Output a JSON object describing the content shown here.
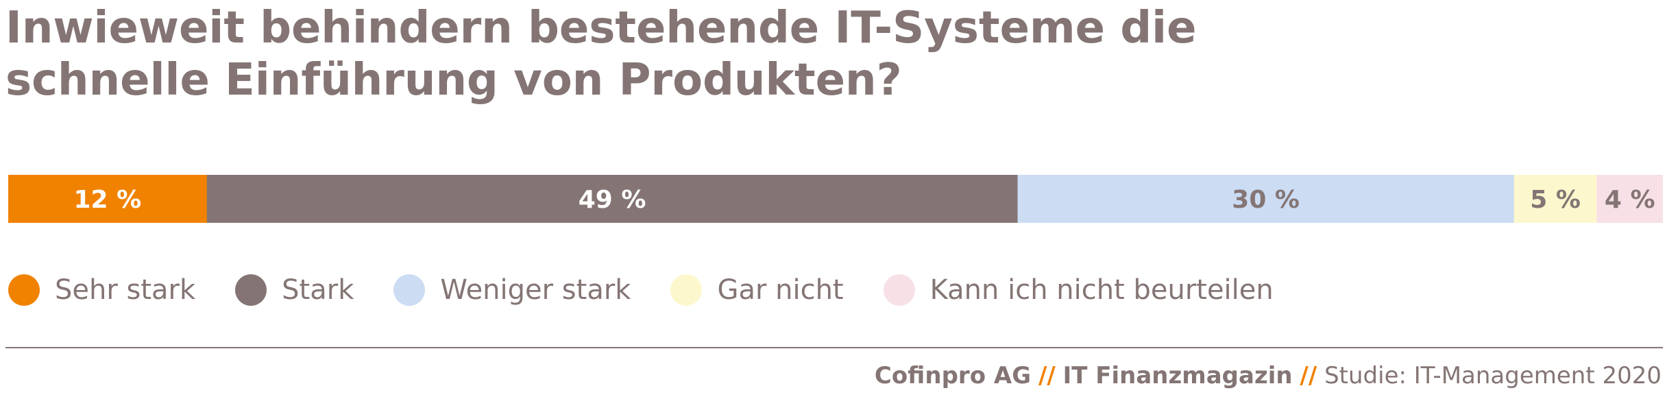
{
  "chart_data": {
    "type": "bar",
    "orientation": "horizontal-stacked-100",
    "title": "Inwieweit behindern bestehende IT-Systeme die schnelle Einführung von Produkten?",
    "categories": [
      "Sehr stark",
      "Stark",
      "Weniger stark",
      "Gar nicht",
      "Kann ich nicht beurteilen"
    ],
    "values": [
      12,
      49,
      30,
      5,
      4
    ],
    "value_labels": [
      "12 %",
      "49 %",
      "30 %",
      "5 %",
      "4 %"
    ],
    "unit": "%",
    "colors": [
      "#f08200",
      "#847574",
      "#cbdcf3",
      "#fdf7cd",
      "#f7e1e6"
    ],
    "label_colors": [
      "#ffffff",
      "#ffffff",
      "#847574",
      "#847574",
      "#847574"
    ],
    "legend_position": "bottom",
    "grid": false
  },
  "footer": {
    "company": "Cofinpro AG",
    "separator": "//",
    "magazine": "IT Finanzmagazin",
    "study": "Studie: IT-Management 2020"
  }
}
